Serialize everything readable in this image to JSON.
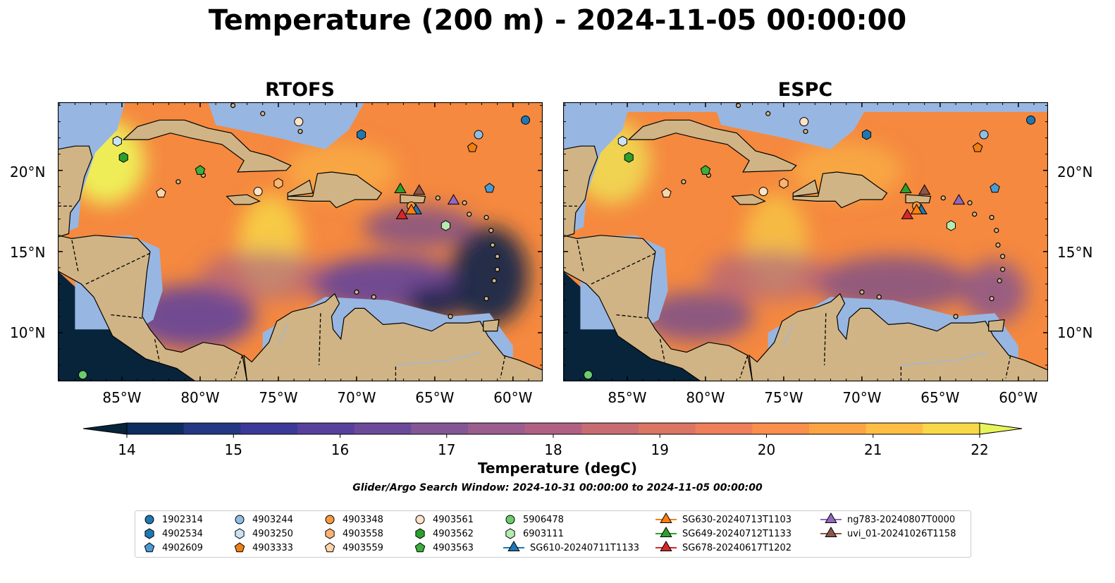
{
  "title": "Temperature (200 m) - 2024-11-05 00:00:00",
  "panels": [
    {
      "title": "RTOFS"
    },
    {
      "title": "ESPC"
    }
  ],
  "axes": {
    "lon_ticks": [
      "85°W",
      "80°W",
      "75°W",
      "70°W",
      "65°W",
      "60°W"
    ],
    "lat_ticks": [
      "20°N",
      "15°N",
      "10°N"
    ]
  },
  "colorbar": {
    "label": "Temperature (degC)",
    "ticks": [
      "14",
      "15",
      "16",
      "17",
      "18",
      "19",
      "20",
      "21",
      "22"
    ],
    "colors": [
      "#07243a",
      "#0d2d5e",
      "#243782",
      "#3b3a98",
      "#56409c",
      "#6c4a9a",
      "#845696",
      "#9a5d8e",
      "#b06082",
      "#c86c73",
      "#db7564",
      "#ee7f58",
      "#f98f4a",
      "#fca443",
      "#fdbe43",
      "#f9d847",
      "#e8f55a"
    ]
  },
  "search_window": "Glider/Argo Search Window: 2024-10-31 00:00:00 to 2024-11-05 00:00:00",
  "legend": [
    {
      "label": "1902314",
      "marker": "circle",
      "color": "#1f77b4"
    },
    {
      "label": "4902534",
      "marker": "hexagon",
      "color": "#1f77b4"
    },
    {
      "label": "4902609",
      "marker": "pentagon",
      "color": "#4a9ad4"
    },
    {
      "label": "4903244",
      "marker": "circle",
      "color": "#8fbfe6"
    },
    {
      "label": "4903250",
      "marker": "hexagon",
      "color": "#c9e3f5"
    },
    {
      "label": "4903333",
      "marker": "pentagon",
      "color": "#f07f12"
    },
    {
      "label": "4903348",
      "marker": "circle",
      "color": "#f79a3e"
    },
    {
      "label": "4903558",
      "marker": "hexagon",
      "color": "#fbb470"
    },
    {
      "label": "4903559",
      "marker": "pentagon",
      "color": "#fdd4a8"
    },
    {
      "label": "4903561",
      "marker": "circle",
      "color": "#fde3c8"
    },
    {
      "label": "4903562",
      "marker": "hexagon",
      "color": "#2ca02c"
    },
    {
      "label": "4903563",
      "marker": "pentagon",
      "color": "#3caf3c"
    },
    {
      "label": "5906478",
      "marker": "circle",
      "color": "#6ccc6c"
    },
    {
      "label": "6903111",
      "marker": "hexagon",
      "color": "#b6ebb0"
    },
    {
      "label": "SG610-20240711T1133",
      "marker": "triangle-line",
      "color": "#1f77b4"
    },
    {
      "label": "SG630-20240713T1103",
      "marker": "triangle-line",
      "color": "#ff7f0e"
    },
    {
      "label": "SG649-20240712T1133",
      "marker": "triangle-line",
      "color": "#2ca02c"
    },
    {
      "label": "SG678-20240617T1202",
      "marker": "triangle-line",
      "color": "#d62728"
    },
    {
      "label": "ng783-20240807T0000",
      "marker": "triangle-line",
      "color": "#9467bd"
    },
    {
      "label": "uvi_01-20241026T1158",
      "marker": "triangle-line",
      "color": "#8c564b"
    }
  ],
  "map_colors": {
    "land": "#d1b485",
    "shallow": "#98b6e2",
    "ocean_warm": "#f5893f",
    "ocean_cool": "#6a4696",
    "ocean_cold": "#10214a",
    "pacific": "#07243a"
  },
  "platforms": [
    {
      "id": "1902314",
      "lon": -59.2,
      "lat": 23.1
    },
    {
      "id": "4902534",
      "lon": -69.7,
      "lat": 22.2
    },
    {
      "id": "4902609",
      "lon": -61.5,
      "lat": 18.9
    },
    {
      "id": "4903244",
      "lon": -62.2,
      "lat": 22.2
    },
    {
      "id": "4903250",
      "lon": -85.3,
      "lat": 21.8
    },
    {
      "id": "4903333",
      "lon": -62.6,
      "lat": 21.4
    },
    {
      "id": "4903348",
      "lon": -66.5,
      "lat": 17.8
    },
    {
      "id": "4903558",
      "lon": -75.0,
      "lat": 19.2
    },
    {
      "id": "4903559",
      "lon": -82.5,
      "lat": 18.6
    },
    {
      "id": "4903561",
      "lon": -73.7,
      "lat": 23.0
    },
    {
      "id": "4903562",
      "lon": -84.9,
      "lat": 20.8
    },
    {
      "id": "4903563",
      "lon": -80.0,
      "lat": 20.0
    },
    {
      "id": "5906478",
      "lon": -87.5,
      "lat": 7.4
    },
    {
      "id": "6903111",
      "lon": -64.3,
      "lat": 16.6
    },
    {
      "id": "4903561b",
      "lon": -76.3,
      "lat": 18.7
    },
    {
      "id": "SG610-20240711T1133",
      "lon": -66.2,
      "lat": 17.6
    },
    {
      "id": "SG630-20240713T1103",
      "lon": -66.5,
      "lat": 17.6
    },
    {
      "id": "SG649-20240712T1133",
      "lon": -67.2,
      "lat": 18.9
    },
    {
      "id": "SG678-20240617T1202",
      "lon": -67.1,
      "lat": 17.3
    },
    {
      "id": "ng783-20240807T0000",
      "lon": -63.8,
      "lat": 18.2
    },
    {
      "id": "uvi_01-20241026T1158",
      "lon": -66.0,
      "lat": 18.8
    }
  ]
}
